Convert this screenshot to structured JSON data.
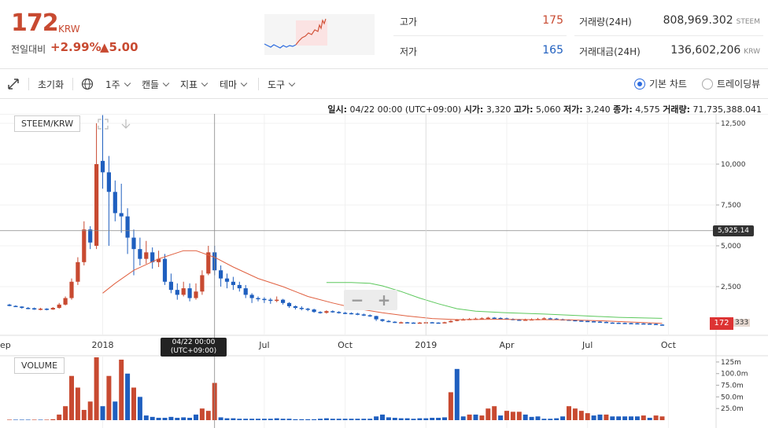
{
  "summary": {
    "price": "172",
    "price_unit": "KRW",
    "change_label": "전일대비",
    "change_pct": "+2.99%",
    "change_abs": "▲5.00",
    "high_label": "고가",
    "high_value": "175",
    "low_label": "저가",
    "low_value": "165",
    "volume_label": "거래량(24H)",
    "volume_value": "808,969.302",
    "volume_unit": "STEEM",
    "amount_label": "거래대금(24H)",
    "amount_value": "136,602,206",
    "amount_unit": "KRW"
  },
  "toolbar": {
    "reset": "초기화",
    "period": "1주",
    "candle": "캔들",
    "indicator": "지표",
    "theme": "테마",
    "tools": "도구",
    "basic_chart": "기본 차트",
    "trading_view": "트레이딩뷰"
  },
  "info": {
    "date_label": "일시:",
    "date": "04/22 00:00 (UTC+09:00)",
    "open_label": "시가:",
    "open": "3,320",
    "high_label": "고가:",
    "high": "5,060",
    "low_label": "저가:",
    "low": "3,240",
    "close_label": "종가:",
    "close": "4,575",
    "volume_label": "거래량:",
    "volume": "71,735,388.041"
  },
  "pair_tag": "STEEM/KRW",
  "volume_tag": "VOLUME",
  "crosshair_date_1": "04/22 00:00",
  "crosshair_date_2": "(UTC+09:00)",
  "crosshair_price": "5,925.14",
  "last_price": "172",
  "last_price_2": "333",
  "colors": {
    "up": "#c84a31",
    "down": "#1f5fbf",
    "ma_short": "#e06040",
    "ma_long": "#5cc85c"
  },
  "chart_data": {
    "type": "candlestick",
    "y_ticks": [
      "12,500",
      "10,000",
      "7,500",
      "5,000",
      "2,500",
      "0"
    ],
    "y_tick_values": [
      12500,
      10000,
      7500,
      5000,
      2500,
      0
    ],
    "ylim": [
      0,
      13500
    ],
    "x_ticks": [
      "ep",
      "2018",
      "Jul",
      "Oct",
      "2019",
      "Apr",
      "Jul",
      "Oct"
    ],
    "x_tick_weeks": [
      -2,
      15,
      41,
      54,
      67,
      80,
      93,
      106
    ],
    "candles": [
      [
        0,
        1400,
        1320,
        1450,
        1300
      ],
      [
        1,
        1320,
        1280,
        1360,
        1250
      ],
      [
        2,
        1280,
        1200,
        1300,
        1150
      ],
      [
        3,
        1200,
        1180,
        1250,
        1120
      ],
      [
        4,
        1180,
        1100,
        1220,
        1080
      ],
      [
        5,
        1100,
        1150,
        1200,
        1050
      ],
      [
        6,
        1150,
        1100,
        1180,
        1050
      ],
      [
        7,
        1100,
        1200,
        1250,
        1080
      ],
      [
        8,
        1200,
        1400,
        1500,
        1150
      ],
      [
        9,
        1400,
        1800,
        1900,
        1350
      ],
      [
        10,
        1800,
        2800,
        3000,
        1700
      ],
      [
        11,
        2800,
        4000,
        4300,
        2600
      ],
      [
        12,
        4000,
        6000,
        6500,
        3800
      ],
      [
        13,
        6000,
        5200,
        6200,
        4800
      ],
      [
        14,
        5000,
        10000,
        12500,
        4800
      ],
      [
        15,
        10200,
        9500,
        13000,
        8500
      ],
      [
        16,
        9500,
        8300,
        10500,
        5000
      ],
      [
        17,
        8300,
        7000,
        9000,
        6500
      ],
      [
        18,
        7000,
        6800,
        8800,
        5800
      ],
      [
        19,
        6800,
        5500,
        7300,
        4500
      ],
      [
        20,
        5500,
        4800,
        6000,
        3200
      ],
      [
        21,
        4800,
        4200,
        5500,
        3800
      ],
      [
        22,
        4200,
        4600,
        5300,
        3900
      ],
      [
        23,
        4600,
        4000,
        4900,
        3600
      ],
      [
        24,
        4000,
        4200,
        4700,
        3700
      ],
      [
        25,
        4200,
        2800,
        4500,
        2600
      ],
      [
        26,
        2800,
        2300,
        3300,
        2100
      ],
      [
        27,
        2300,
        2000,
        2700,
        1700
      ],
      [
        28,
        2000,
        2400,
        2800,
        1900
      ],
      [
        29,
        2400,
        1800,
        2700,
        1600
      ],
      [
        30,
        1800,
        2200,
        2700,
        1700
      ],
      [
        31,
        2200,
        3200,
        3500,
        2000
      ],
      [
        32,
        3300,
        4600,
        5000,
        3200
      ],
      [
        33,
        4600,
        3500,
        5000,
        3200
      ],
      [
        34,
        3500,
        3000,
        3800,
        2500
      ],
      [
        35,
        3000,
        2800,
        3300,
        2400
      ],
      [
        36,
        2800,
        2600,
        3100,
        2300
      ],
      [
        37,
        2600,
        2400,
        2800,
        2200
      ],
      [
        38,
        2400,
        2000,
        2600,
        1800
      ],
      [
        39,
        2000,
        1800,
        2100,
        1500
      ],
      [
        40,
        1800,
        1750,
        1900,
        1600
      ],
      [
        41,
        1750,
        1700,
        1850,
        1500
      ],
      [
        42,
        1700,
        1650,
        1800,
        1450
      ],
      [
        43,
        1650,
        1700,
        1900,
        1550
      ],
      [
        44,
        1700,
        1500,
        1750,
        1400
      ],
      [
        45,
        1500,
        1300,
        1550,
        1200
      ],
      [
        46,
        1300,
        1200,
        1350,
        1100
      ],
      [
        47,
        1200,
        1150,
        1300,
        1050
      ],
      [
        48,
        1150,
        1100,
        1200,
        1000
      ],
      [
        49,
        1100,
        950,
        1150,
        900
      ],
      [
        50,
        950,
        900,
        1000,
        850
      ],
      [
        51,
        900,
        1000,
        1050,
        850
      ],
      [
        52,
        1000,
        950,
        1050,
        900
      ],
      [
        53,
        950,
        900,
        1000,
        850
      ],
      [
        54,
        900,
        880,
        950,
        820
      ],
      [
        55,
        880,
        850,
        920,
        800
      ],
      [
        56,
        850,
        800,
        900,
        750
      ],
      [
        57,
        800,
        750,
        850,
        700
      ],
      [
        58,
        750,
        700,
        800,
        650
      ],
      [
        59,
        700,
        500,
        720,
        400
      ],
      [
        60,
        500,
        400,
        520,
        350
      ],
      [
        61,
        400,
        350,
        450,
        320
      ],
      [
        62,
        350,
        300,
        380,
        280
      ],
      [
        63,
        300,
        320,
        360,
        270
      ],
      [
        64,
        320,
        300,
        340,
        260
      ],
      [
        65,
        300,
        280,
        320,
        250
      ],
      [
        66,
        280,
        300,
        330,
        260
      ],
      [
        67,
        300,
        320,
        340,
        280
      ],
      [
        68,
        320,
        300,
        340,
        280
      ],
      [
        69,
        300,
        280,
        320,
        260
      ],
      [
        70,
        280,
        320,
        350,
        270
      ],
      [
        71,
        320,
        400,
        450,
        300
      ],
      [
        72,
        400,
        480,
        520,
        380
      ],
      [
        73,
        480,
        500,
        560,
        450
      ],
      [
        74,
        500,
        520,
        580,
        470
      ],
      [
        75,
        520,
        540,
        600,
        480
      ],
      [
        76,
        540,
        560,
        620,
        500
      ],
      [
        77,
        560,
        600,
        650,
        520
      ],
      [
        78,
        600,
        580,
        640,
        540
      ],
      [
        79,
        580,
        560,
        620,
        520
      ],
      [
        80,
        560,
        520,
        600,
        480
      ],
      [
        81,
        520,
        480,
        560,
        440
      ],
      [
        82,
        480,
        450,
        520,
        420
      ],
      [
        83,
        450,
        480,
        540,
        420
      ],
      [
        84,
        480,
        500,
        560,
        460
      ],
      [
        85,
        500,
        520,
        580,
        470
      ],
      [
        86,
        520,
        560,
        620,
        500
      ],
      [
        87,
        560,
        540,
        600,
        500
      ],
      [
        88,
        540,
        500,
        580,
        460
      ],
      [
        89,
        500,
        480,
        540,
        440
      ],
      [
        90,
        480,
        450,
        500,
        420
      ],
      [
        91,
        450,
        420,
        480,
        380
      ],
      [
        92,
        420,
        400,
        450,
        360
      ],
      [
        93,
        400,
        380,
        430,
        350
      ],
      [
        94,
        380,
        360,
        400,
        330
      ],
      [
        95,
        360,
        340,
        380,
        310
      ],
      [
        96,
        340,
        300,
        360,
        280
      ],
      [
        97,
        300,
        290,
        320,
        270
      ],
      [
        98,
        290,
        280,
        310,
        260
      ],
      [
        99,
        280,
        270,
        300,
        250
      ],
      [
        100,
        270,
        260,
        290,
        240
      ],
      [
        101,
        260,
        250,
        280,
        230
      ],
      [
        102,
        250,
        240,
        270,
        220
      ],
      [
        103,
        240,
        220,
        260,
        200
      ],
      [
        104,
        220,
        180,
        240,
        170
      ],
      [
        105,
        180,
        172,
        190,
        165
      ]
    ],
    "ma_short": [
      [
        15,
        2100
      ],
      [
        17,
        2700
      ],
      [
        20,
        3500
      ],
      [
        24,
        4200
      ],
      [
        28,
        4700
      ],
      [
        30,
        4700
      ],
      [
        33,
        4300
      ],
      [
        36,
        3700
      ],
      [
        40,
        3000
      ],
      [
        44,
        2500
      ],
      [
        48,
        1900
      ],
      [
        52,
        1500
      ],
      [
        56,
        1150
      ],
      [
        60,
        900
      ],
      [
        64,
        700
      ],
      [
        68,
        550
      ],
      [
        72,
        480
      ],
      [
        78,
        500
      ],
      [
        84,
        480
      ],
      [
        90,
        470
      ],
      [
        96,
        400
      ],
      [
        102,
        300
      ],
      [
        105,
        250
      ]
    ],
    "ma_long": [
      [
        51,
        2750
      ],
      [
        55,
        2750
      ],
      [
        58,
        2700
      ],
      [
        60,
        2550
      ],
      [
        63,
        2200
      ],
      [
        66,
        1800
      ],
      [
        69,
        1450
      ],
      [
        72,
        1150
      ],
      [
        75,
        1000
      ],
      [
        80,
        900
      ],
      [
        86,
        820
      ],
      [
        92,
        720
      ],
      [
        98,
        620
      ],
      [
        105,
        560
      ]
    ],
    "volume_ticks": [
      "125m",
      "100.0m",
      "75.0m",
      "50.0m",
      "25.0m"
    ],
    "volume_tick_values": [
      125,
      100,
      75,
      50,
      25
    ],
    "volume_max": 135,
    "volumes": [
      [
        0,
        1,
        1
      ],
      [
        1,
        1,
        0
      ],
      [
        2,
        1,
        0
      ],
      [
        3,
        1,
        0
      ],
      [
        4,
        1,
        1
      ],
      [
        5,
        1,
        0
      ],
      [
        6,
        1,
        1
      ],
      [
        7,
        2,
        1
      ],
      [
        8,
        12,
        1
      ],
      [
        9,
        30,
        1
      ],
      [
        10,
        95,
        1
      ],
      [
        11,
        70,
        1
      ],
      [
        12,
        22,
        1
      ],
      [
        13,
        40,
        1
      ],
      [
        14,
        160,
        1
      ],
      [
        15,
        30,
        0
      ],
      [
        16,
        95,
        1
      ],
      [
        17,
        40,
        0
      ],
      [
        18,
        130,
        1
      ],
      [
        19,
        100,
        0
      ],
      [
        20,
        70,
        1
      ],
      [
        21,
        50,
        0
      ],
      [
        22,
        10,
        0
      ],
      [
        23,
        7,
        0
      ],
      [
        24,
        5,
        0
      ],
      [
        25,
        5,
        0
      ],
      [
        26,
        7,
        0
      ],
      [
        27,
        5,
        0
      ],
      [
        28,
        6,
        0
      ],
      [
        29,
        5,
        0
      ],
      [
        30,
        12,
        0
      ],
      [
        31,
        25,
        1
      ],
      [
        32,
        20,
        1
      ],
      [
        33,
        80,
        1
      ],
      [
        34,
        6,
        0
      ],
      [
        35,
        4,
        0
      ],
      [
        36,
        4,
        0
      ],
      [
        37,
        3,
        0
      ],
      [
        38,
        3,
        0
      ],
      [
        39,
        3,
        0
      ],
      [
        40,
        3,
        0
      ],
      [
        41,
        3,
        0
      ],
      [
        42,
        3,
        0
      ],
      [
        43,
        4,
        0
      ],
      [
        44,
        3,
        0
      ],
      [
        45,
        3,
        0
      ],
      [
        46,
        2,
        0
      ],
      [
        47,
        2,
        0
      ],
      [
        48,
        2,
        0
      ],
      [
        49,
        2,
        0
      ],
      [
        50,
        3,
        0
      ],
      [
        51,
        4,
        0
      ],
      [
        52,
        3,
        0
      ],
      [
        53,
        3,
        0
      ],
      [
        54,
        3,
        0
      ],
      [
        55,
        3,
        0
      ],
      [
        56,
        3,
        0
      ],
      [
        57,
        3,
        0
      ],
      [
        58,
        3,
        0
      ],
      [
        59,
        8,
        0
      ],
      [
        60,
        12,
        0
      ],
      [
        61,
        6,
        0
      ],
      [
        62,
        5,
        0
      ],
      [
        63,
        4,
        0
      ],
      [
        64,
        4,
        0
      ],
      [
        65,
        3,
        0
      ],
      [
        66,
        4,
        0
      ],
      [
        67,
        4,
        0
      ],
      [
        68,
        5,
        0
      ],
      [
        69,
        5,
        0
      ],
      [
        70,
        6,
        0
      ],
      [
        71,
        60,
        1
      ],
      [
        72,
        110,
        0
      ],
      [
        73,
        8,
        0
      ],
      [
        74,
        12,
        1
      ],
      [
        75,
        12,
        0
      ],
      [
        76,
        10,
        1
      ],
      [
        77,
        25,
        1
      ],
      [
        78,
        30,
        1
      ],
      [
        79,
        10,
        0
      ],
      [
        80,
        20,
        1
      ],
      [
        81,
        18,
        1
      ],
      [
        82,
        18,
        1
      ],
      [
        83,
        12,
        0
      ],
      [
        84,
        7,
        0
      ],
      [
        85,
        8,
        0
      ],
      [
        86,
        3,
        0
      ],
      [
        87,
        3,
        0
      ],
      [
        88,
        4,
        0
      ],
      [
        89,
        8,
        0
      ],
      [
        90,
        30,
        1
      ],
      [
        91,
        25,
        1
      ],
      [
        92,
        20,
        1
      ],
      [
        93,
        15,
        1
      ],
      [
        94,
        10,
        0
      ],
      [
        95,
        12,
        0
      ],
      [
        96,
        12,
        1
      ],
      [
        97,
        8,
        0
      ],
      [
        98,
        8,
        0
      ],
      [
        99,
        8,
        0
      ],
      [
        100,
        8,
        0
      ],
      [
        101,
        8,
        0
      ],
      [
        102,
        10,
        1
      ],
      [
        103,
        5,
        0
      ],
      [
        104,
        10,
        1
      ],
      [
        105,
        8,
        1
      ]
    ]
  }
}
